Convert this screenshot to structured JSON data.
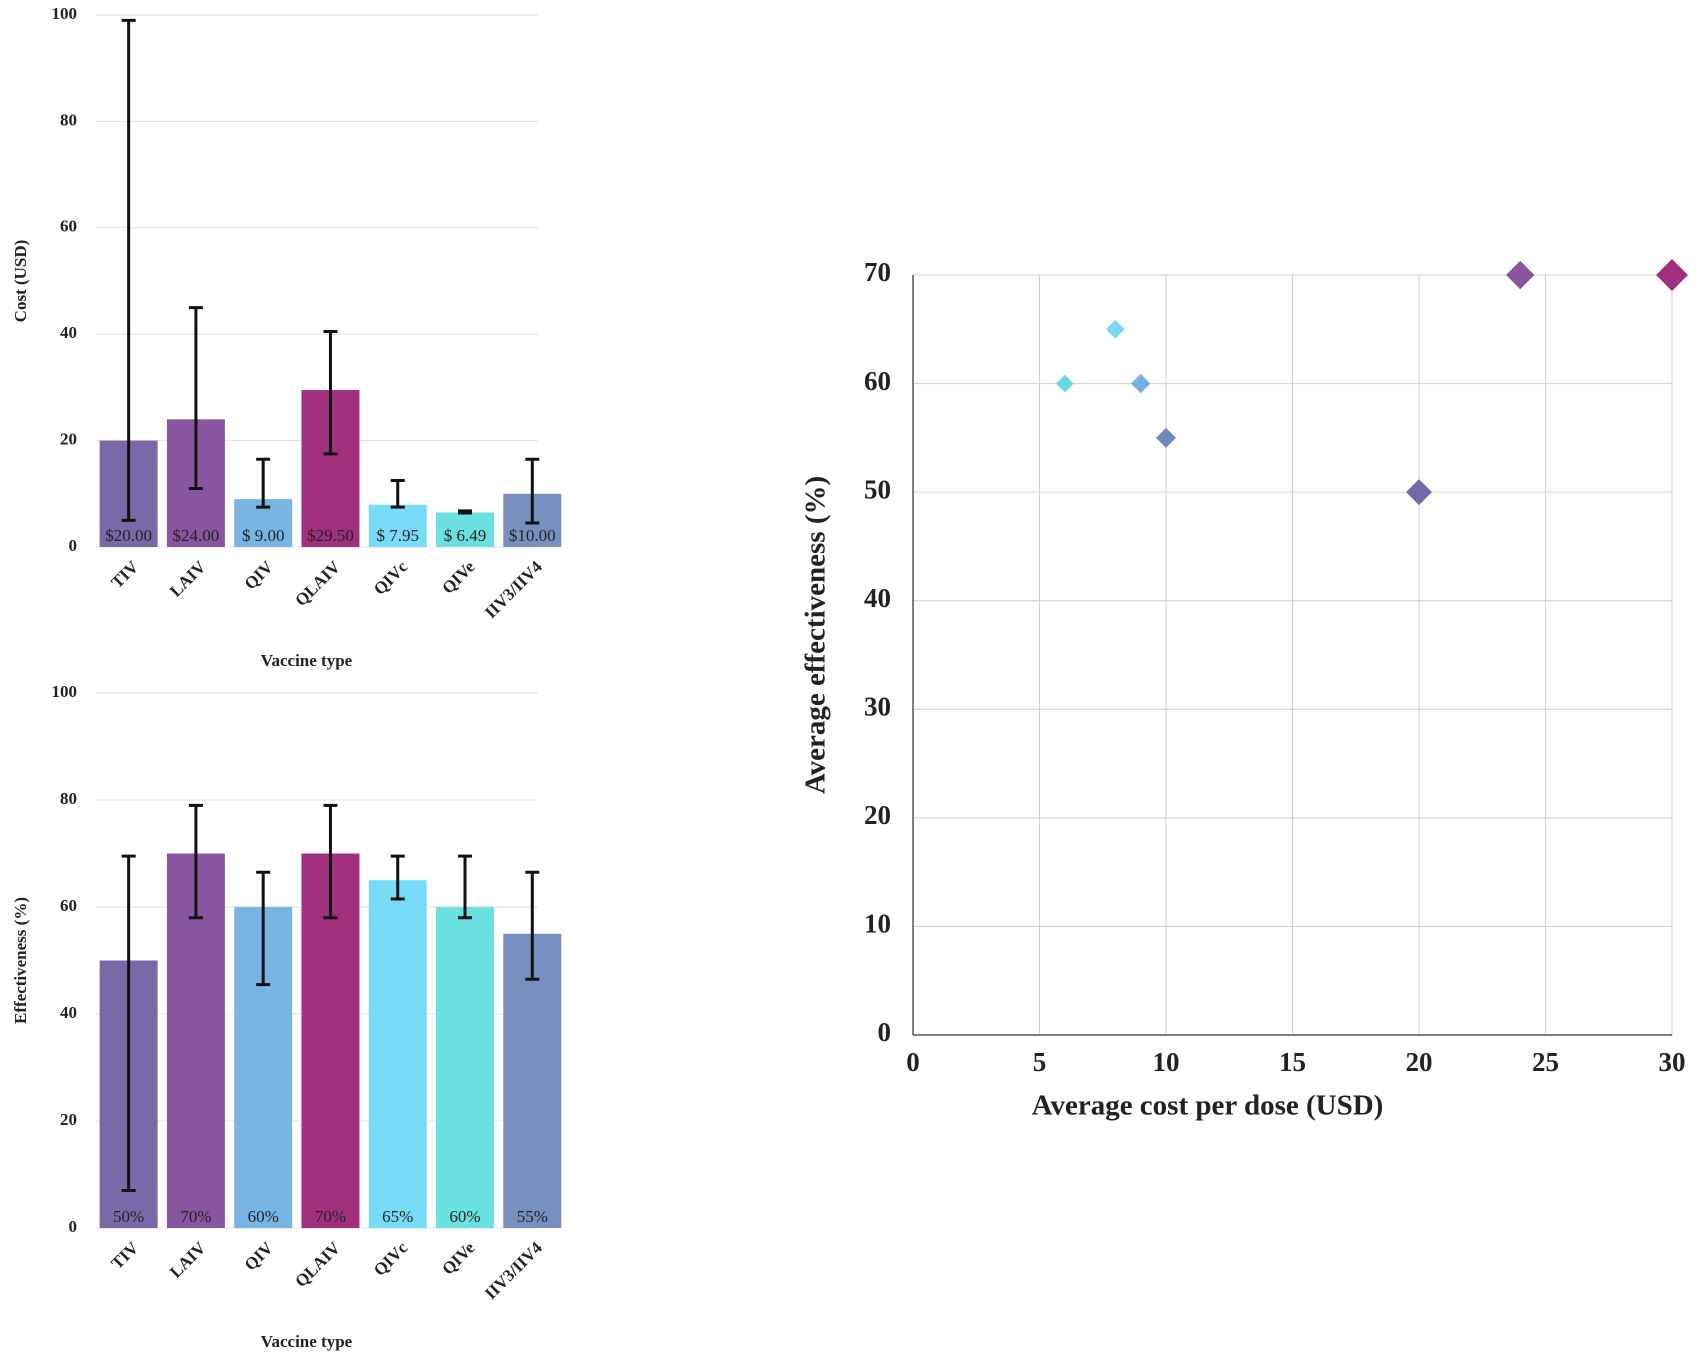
{
  "chart_data": [
    {
      "type": "bar",
      "x_label": "Vaccine type",
      "y_label": "Cost (USD)",
      "categories": [
        "TIV",
        "LAIV",
        "QIV",
        "QLAIV",
        "QIVc",
        "QIVe",
        "IIV3/IIV4"
      ],
      "values": [
        20,
        24,
        9,
        29.5,
        7.95,
        6.49,
        10
      ],
      "value_labels": [
        "$20.00",
        "$24.00",
        "$ 9.00",
        "$29.50",
        "$ 7.95",
        "$ 6.49",
        "$10.00"
      ],
      "error_low": [
        5,
        11,
        7.5,
        17.5,
        7.5,
        6.4,
        4.5
      ],
      "error_high": [
        99,
        45,
        16.5,
        40.5,
        12.5,
        6.8,
        16.5
      ],
      "colors": [
        "#7b68a8",
        "#8a55a0",
        "#78b4e4",
        "#a0307e",
        "#78dcf8",
        "#6ae0e0",
        "#7890c0"
      ],
      "ylim": [
        0,
        100
      ],
      "yticks": [
        0,
        20,
        40,
        60,
        80,
        100
      ],
      "grid": true
    },
    {
      "type": "bar",
      "x_label": "Vaccine type",
      "y_label": "Effectiveness (%)",
      "categories": [
        "TIV",
        "LAIV",
        "QIV",
        "QLAIV",
        "QIVc",
        "QIVe",
        "IIV3/IIV4"
      ],
      "values": [
        50,
        70,
        60,
        70,
        65,
        60,
        55
      ],
      "value_labels": [
        "50%",
        "70%",
        "60%",
        "70%",
        "65%",
        "60%",
        "55%"
      ],
      "error_low": [
        7,
        58,
        45.5,
        58,
        61.5,
        58,
        46.5
      ],
      "error_high": [
        69.5,
        79,
        66.5,
        79,
        69.5,
        69.5,
        66.5
      ],
      "colors": [
        "#7b68a8",
        "#8a55a0",
        "#78b4e4",
        "#a0307e",
        "#78dcf8",
        "#6ae0e0",
        "#7890c0"
      ],
      "ylim": [
        0,
        100
      ],
      "yticks": [
        0,
        20,
        40,
        60,
        80,
        100
      ],
      "grid": true
    },
    {
      "type": "scatter",
      "x_label": "Average cost per dose (USD)",
      "y_label": "Average effectiveness (%)",
      "x": [
        6,
        8,
        9,
        10,
        20,
        24,
        30
      ],
      "values": [
        60,
        65,
        60,
        55,
        50,
        70,
        70
      ],
      "colors": [
        "#6ad8e0",
        "#78d8f8",
        "#78aee0",
        "#7088bc",
        "#7468a8",
        "#8a55a0",
        "#a0307e"
      ],
      "xlim": [
        0,
        30
      ],
      "xticks": [
        0,
        5,
        10,
        15,
        20,
        25,
        30
      ],
      "ylim": [
        0,
        70
      ],
      "yticks": [
        0,
        10,
        20,
        30,
        40,
        50,
        60,
        70
      ],
      "grid": true
    }
  ]
}
